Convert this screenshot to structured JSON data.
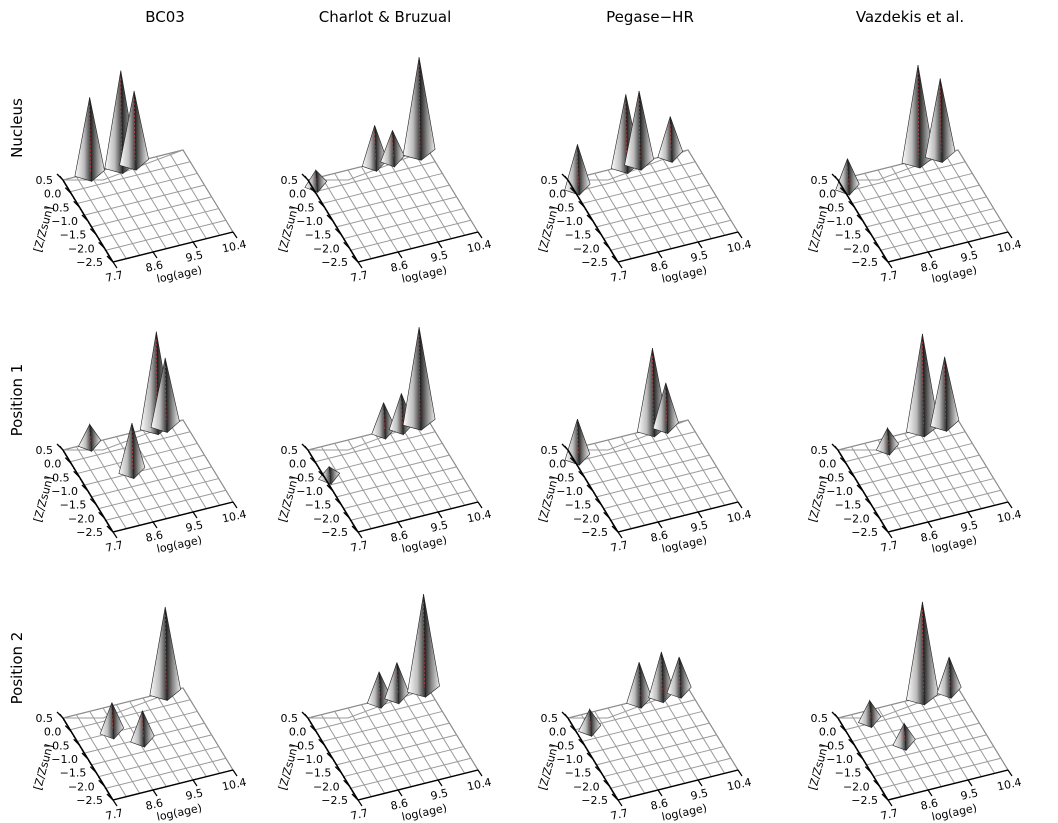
{
  "figure": {
    "column_titles": [
      "BC03",
      "Charlot & Bruzual",
      "Pegase−HR",
      "Vazdekis et al."
    ],
    "row_titles": [
      "Nucleus",
      "Position 1",
      "Position 2"
    ],
    "xlabel": "log(age)",
    "ylabel": "[Z/Zsun]",
    "x_tick_labels": [
      "7.7",
      "8.6",
      "9.5",
      "10.4"
    ],
    "y_tick_labels": [
      "0.5",
      "0.0",
      "−0.5",
      "−1.0",
      "−1.5",
      "−2.0",
      "−2.5"
    ]
  },
  "chart_data": [
    {
      "type": "surface",
      "row": "Nucleus",
      "model": "BC03",
      "x_range": [
        7.7,
        10.4
      ],
      "y_range": [
        -2.5,
        0.5
      ],
      "peaks": [
        {
          "log_age": 8.3,
          "z": 0.5,
          "height": 0.8
        },
        {
          "log_age": 9.0,
          "z": 0.5,
          "height": 1.0
        },
        {
          "log_age": 9.3,
          "z": 0.5,
          "height": 0.75
        }
      ]
    },
    {
      "type": "surface",
      "row": "Nucleus",
      "model": "Charlot & Bruzual",
      "x_range": [
        7.7,
        10.4
      ],
      "y_range": [
        -2.5,
        0.5
      ],
      "peaks": [
        {
          "log_age": 7.8,
          "z": 0.3,
          "height": 0.15
        },
        {
          "log_age": 9.2,
          "z": 0.5,
          "height": 0.4
        },
        {
          "log_age": 9.6,
          "z": 0.5,
          "height": 0.3
        },
        {
          "log_age": 10.2,
          "z": 0.5,
          "height": 1.0
        }
      ]
    },
    {
      "type": "surface",
      "row": "Nucleus",
      "model": "Pegase−HR",
      "x_range": [
        7.7,
        10.4
      ],
      "y_range": [
        -2.5,
        0.5
      ],
      "peaks": [
        {
          "log_age": 7.8,
          "z": 0.2,
          "height": 0.45
        },
        {
          "log_age": 9.0,
          "z": 0.5,
          "height": 0.75
        },
        {
          "log_age": 9.3,
          "z": 0.5,
          "height": 0.75
        },
        {
          "log_age": 10.0,
          "z": 0.5,
          "height": 0.4
        }
      ]
    },
    {
      "type": "surface",
      "row": "Nucleus",
      "model": "Vazdekis et al.",
      "x_range": [
        7.7,
        10.4
      ],
      "y_range": [
        -2.5,
        0.5
      ],
      "peaks": [
        {
          "log_age": 7.8,
          "z": 0.2,
          "height": 0.3
        },
        {
          "log_age": 9.5,
          "z": 0.5,
          "height": 1.0
        },
        {
          "log_age": 10.0,
          "z": 0.5,
          "height": 0.8
        }
      ]
    },
    {
      "type": "surface",
      "row": "Position 1",
      "model": "BC03",
      "x_range": [
        7.7,
        10.4
      ],
      "y_range": [
        -2.5,
        0.5
      ],
      "peaks": [
        {
          "log_age": 8.3,
          "z": 0.5,
          "height": 0.2
        },
        {
          "log_age": 8.8,
          "z": -0.7,
          "height": 0.5
        },
        {
          "log_age": 9.8,
          "z": 0.5,
          "height": 1.0
        },
        {
          "log_age": 10.0,
          "z": 0.5,
          "height": 0.7
        }
      ]
    },
    {
      "type": "surface",
      "row": "Position 1",
      "model": "Charlot & Bruzual",
      "x_range": [
        7.7,
        10.4
      ],
      "y_range": [
        -2.5,
        0.5
      ],
      "peaks": [
        {
          "log_age": 7.8,
          "z": -0.5,
          "height": 0.1
        },
        {
          "log_age": 9.4,
          "z": 0.5,
          "height": 0.3
        },
        {
          "log_age": 9.8,
          "z": 0.5,
          "height": 0.35
        },
        {
          "log_age": 10.2,
          "z": 0.5,
          "height": 1.0
        }
      ]
    },
    {
      "type": "surface",
      "row": "Position 1",
      "model": "Pegase−HR",
      "x_range": [
        7.7,
        10.4
      ],
      "y_range": [
        -2.5,
        0.5
      ],
      "peaks": [
        {
          "log_age": 7.8,
          "z": 0.2,
          "height": 0.4
        },
        {
          "log_age": 9.6,
          "z": 0.5,
          "height": 0.85
        },
        {
          "log_age": 9.9,
          "z": 0.5,
          "height": 0.45
        }
      ]
    },
    {
      "type": "surface",
      "row": "Position 1",
      "model": "Vazdekis et al.",
      "x_range": [
        7.7,
        10.4
      ],
      "y_range": [
        -2.5,
        0.5
      ],
      "peaks": [
        {
          "log_age": 8.7,
          "z": 0.2,
          "height": 0.2
        },
        {
          "log_age": 9.6,
          "z": 0.5,
          "height": 1.0
        },
        {
          "log_age": 10.1,
          "z": 0.5,
          "height": 0.7
        }
      ]
    },
    {
      "type": "surface",
      "row": "Position 2",
      "model": "BC03",
      "x_range": [
        7.7,
        10.4
      ],
      "y_range": [
        -2.5,
        0.5
      ],
      "peaks": [
        {
          "log_age": 8.5,
          "z": -0.3,
          "height": 0.3
        },
        {
          "log_age": 9.0,
          "z": -0.8,
          "height": 0.3
        },
        {
          "log_age": 10.0,
          "z": 0.5,
          "height": 0.9
        }
      ]
    },
    {
      "type": "surface",
      "row": "Position 2",
      "model": "Charlot & Bruzual",
      "x_range": [
        7.7,
        10.4
      ],
      "y_range": [
        -2.5,
        0.5
      ],
      "peaks": [
        {
          "log_age": 9.3,
          "z": 0.5,
          "height": 0.3
        },
        {
          "log_age": 9.7,
          "z": 0.5,
          "height": 0.35
        },
        {
          "log_age": 10.3,
          "z": 0.5,
          "height": 1.0
        }
      ]
    },
    {
      "type": "surface",
      "row": "Position 2",
      "model": "Pegase−HR",
      "x_range": [
        7.7,
        10.4
      ],
      "y_range": [
        -2.5,
        0.5
      ],
      "peaks": [
        {
          "log_age": 8.0,
          "z": 0.0,
          "height": 0.2
        },
        {
          "log_age": 9.3,
          "z": 0.5,
          "height": 0.4
        },
        {
          "log_age": 9.8,
          "z": 0.5,
          "height": 0.45
        },
        {
          "log_age": 10.2,
          "z": 0.5,
          "height": 0.35
        }
      ]
    },
    {
      "type": "surface",
      "row": "Position 2",
      "model": "Vazdekis et al.",
      "x_range": [
        7.7,
        10.4
      ],
      "y_range": [
        -2.5,
        0.5
      ],
      "peaks": [
        {
          "log_age": 8.3,
          "z": 0.2,
          "height": 0.2
        },
        {
          "log_age": 8.7,
          "z": -0.8,
          "height": 0.2
        },
        {
          "log_age": 9.6,
          "z": 0.5,
          "height": 1.0
        },
        {
          "log_age": 10.2,
          "z": 0.5,
          "height": 0.35
        }
      ]
    }
  ]
}
